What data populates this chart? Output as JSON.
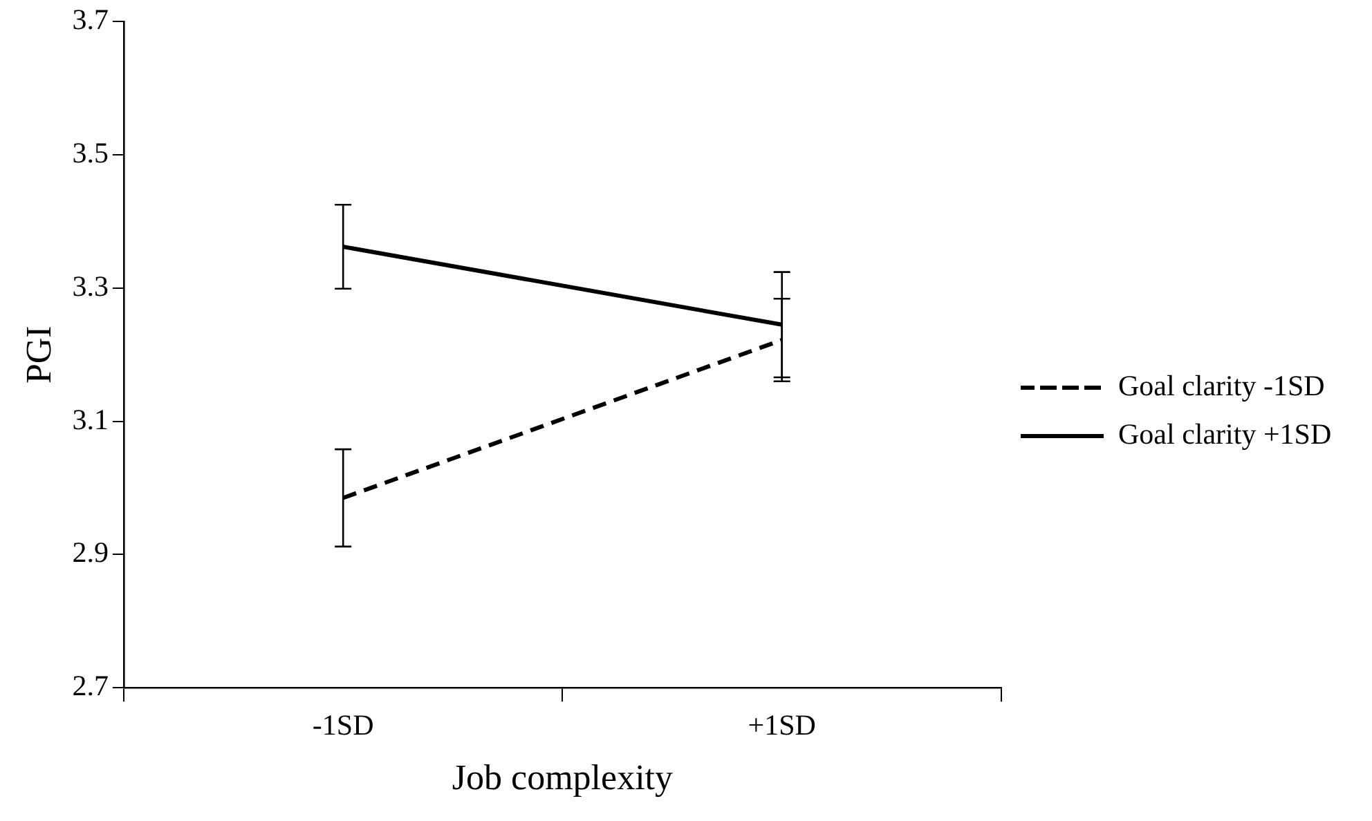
{
  "chart_data": {
    "type": "line",
    "xlabel": "Job complexity",
    "ylabel": "PGI",
    "categories": [
      "-1SD",
      "+1SD"
    ],
    "series": [
      {
        "name": "Goal clarity -1SD",
        "color": "#000000",
        "line_style": "dashed",
        "values": [
          2.985,
          3.222
        ],
        "errors": [
          0.073,
          0.062
        ]
      },
      {
        "name": "Goal clarity +1SD",
        "color": "#000000",
        "line_style": "solid",
        "values": [
          3.362,
          3.245
        ],
        "errors": [
          0.063,
          0.079
        ]
      }
    ],
    "ylim": [
      2.7,
      3.7
    ],
    "yticks": [
      2.7,
      2.9,
      3.1,
      3.3,
      3.5,
      3.7
    ],
    "grid": false,
    "legend": "right",
    "marker": "none"
  }
}
